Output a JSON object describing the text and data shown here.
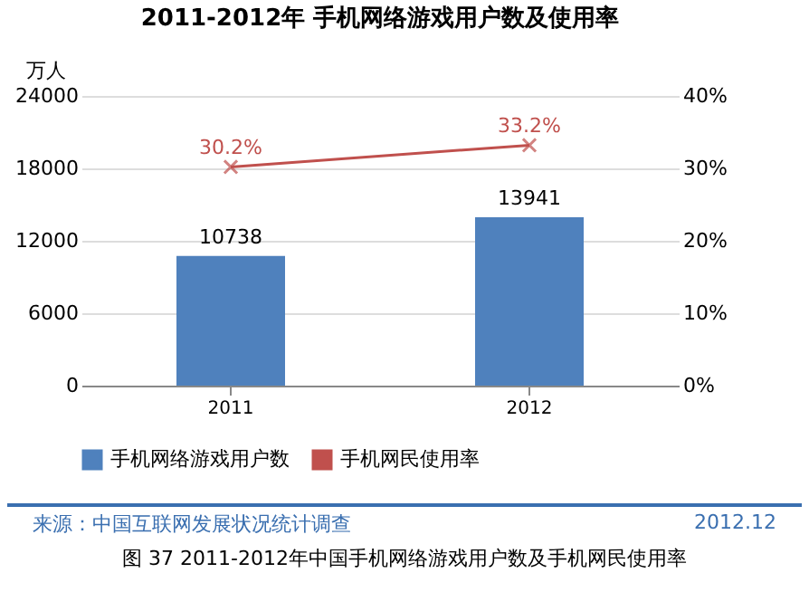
{
  "chart_data": {
    "type": "bar",
    "title": "2011-2012年 手机网络游戏用户数及使用率",
    "ylabel": "万人",
    "categories": [
      "2011",
      "2012"
    ],
    "series": [
      {
        "name": "手机网络游戏用户数",
        "color": "#4f81bd",
        "values": [
          10738,
          13941
        ],
        "value_labels": [
          "10738",
          "13941"
        ]
      },
      {
        "name": "手机网民使用率",
        "type": "line",
        "axis": "y2",
        "color": "#c0504d",
        "values": [
          30.2,
          33.2
        ],
        "value_labels": [
          "30.2%",
          "33.2%"
        ]
      }
    ],
    "ylim": [
      0,
      24000
    ],
    "yticks": [
      0,
      6000,
      12000,
      18000,
      24000
    ],
    "y2lim": [
      0,
      40
    ],
    "y2ticks": [
      {
        "value": 0,
        "label": "0%"
      },
      {
        "value": 10,
        "label": "10%"
      },
      {
        "value": 20,
        "label": "20%"
      },
      {
        "value": 30,
        "label": "30%"
      },
      {
        "value": 40,
        "label": "40%"
      }
    ],
    "grid": "y",
    "legend": "bottom",
    "marker": "cross",
    "line_style": "solid",
    "annotations": [
      "来源：中国互联网发展状况统计调查",
      "2012.12",
      "图 37  2011-2012年中国手机网络游戏用户数及手机网民使用率"
    ]
  }
}
